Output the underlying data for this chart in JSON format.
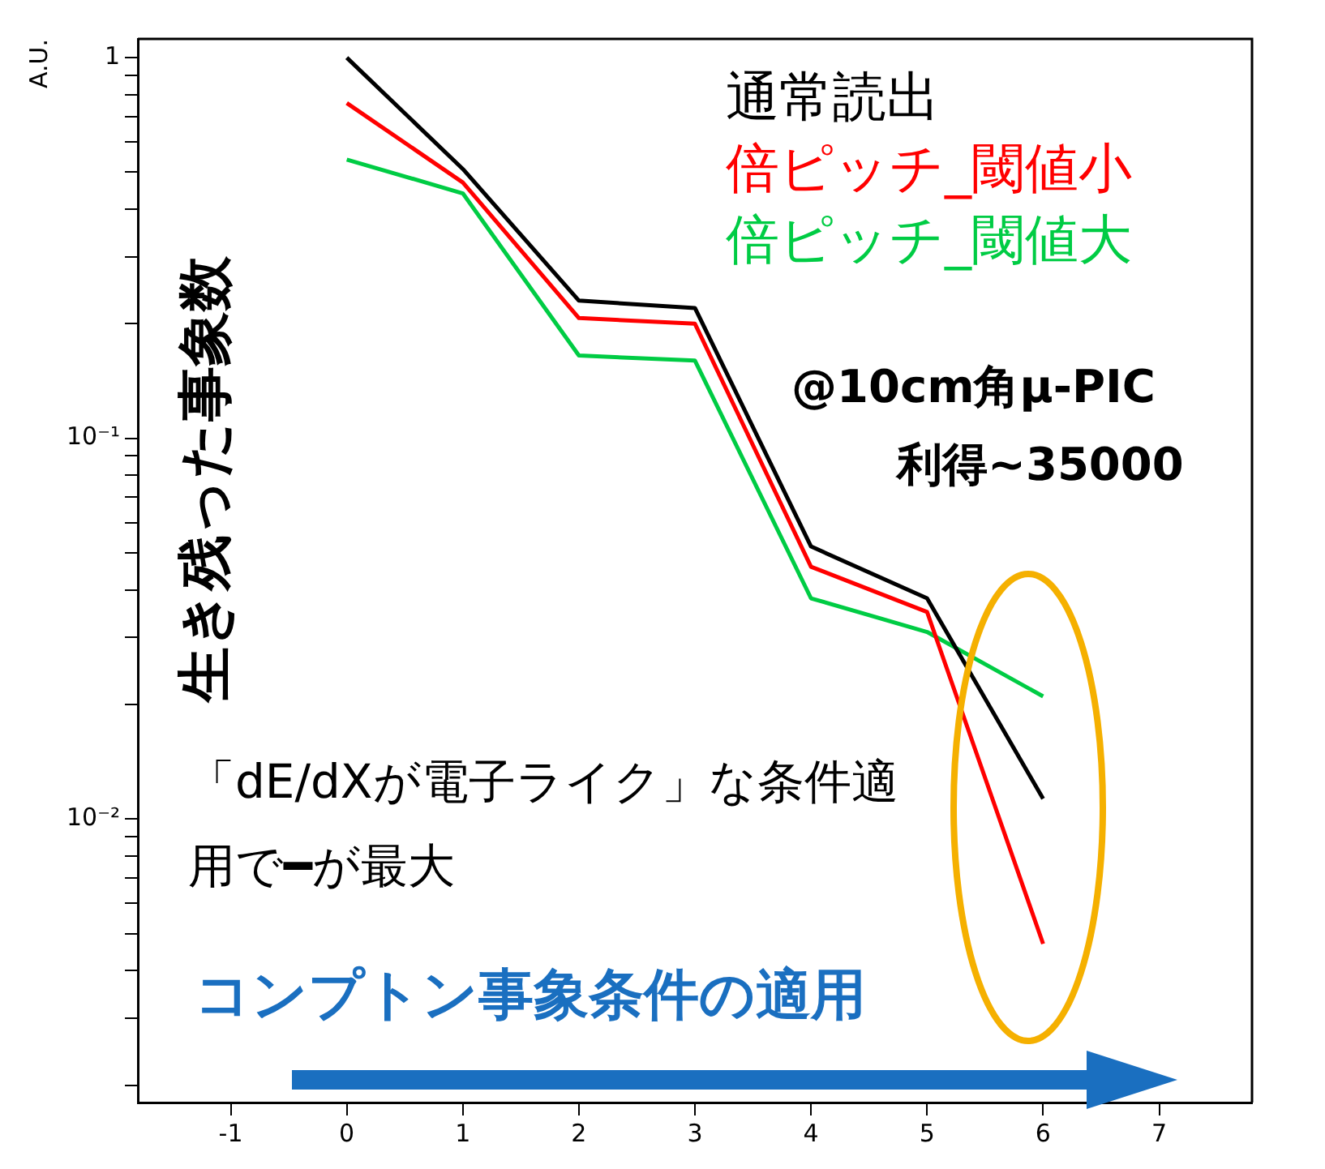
{
  "chart_data": {
    "type": "line",
    "ylabel": "A.U.",
    "x": [
      0,
      1,
      2,
      3,
      4,
      5,
      6
    ],
    "series": [
      {
        "name": "通常読出",
        "color": "#000000",
        "values": [
          1.0,
          0.51,
          0.23,
          0.22,
          0.052,
          0.038,
          0.0113
        ]
      },
      {
        "name": "倍ピッチ_閾値小",
        "color": "#ff0000",
        "values": [
          0.76,
          0.47,
          0.207,
          0.2,
          0.046,
          0.035,
          0.0047
        ]
      },
      {
        "name": "倍ピッチ_閾値大",
        "color": "#00cc44",
        "values": [
          0.54,
          0.44,
          0.165,
          0.16,
          0.038,
          0.031,
          0.021
        ]
      }
    ],
    "xlim": [
      -1.8,
      7.8
    ],
    "xticks": [
      -1,
      0,
      1,
      2,
      3,
      4,
      5,
      6,
      7
    ],
    "ylim": [
      0.0018,
      1.12
    ],
    "log": true,
    "yticks": [
      {
        "value": 0.002,
        "label": null
      },
      {
        "value": 0.003,
        "label": null
      },
      {
        "value": 0.004,
        "label": null
      },
      {
        "value": 0.005,
        "label": null
      },
      {
        "value": 0.006,
        "label": null
      },
      {
        "value": 0.007,
        "label": null
      },
      {
        "value": 0.008,
        "label": null
      },
      {
        "value": 0.009,
        "label": null
      },
      {
        "value": 0.01,
        "label": "10⁻²"
      },
      {
        "value": 0.02,
        "label": null
      },
      {
        "value": 0.03,
        "label": null
      },
      {
        "value": 0.04,
        "label": null
      },
      {
        "value": 0.05,
        "label": null
      },
      {
        "value": 0.06,
        "label": null
      },
      {
        "value": 0.07,
        "label": null
      },
      {
        "value": 0.08,
        "label": null
      },
      {
        "value": 0.09,
        "label": null
      },
      {
        "value": 0.1,
        "label": "10⁻¹"
      },
      {
        "value": 0.2,
        "label": null
      },
      {
        "value": 0.3,
        "label": null
      },
      {
        "value": 0.4,
        "label": null
      },
      {
        "value": 0.5,
        "label": null
      },
      {
        "value": 0.6,
        "label": null
      },
      {
        "value": 0.7,
        "label": null
      },
      {
        "value": 0.8,
        "label": null
      },
      {
        "value": 0.9,
        "label": null
      },
      {
        "value": 1,
        "label": "1"
      }
    ],
    "marker": "none",
    "line_style": "solid",
    "legend": "top right",
    "annotations": [
      "生き残った事象数",
      "@10cm角μ-PIC",
      "利得~35000",
      "「dE/dXが電子ライク」な条件適用で━が最大",
      "コンプトン事象条件の適用"
    ]
  }
}
